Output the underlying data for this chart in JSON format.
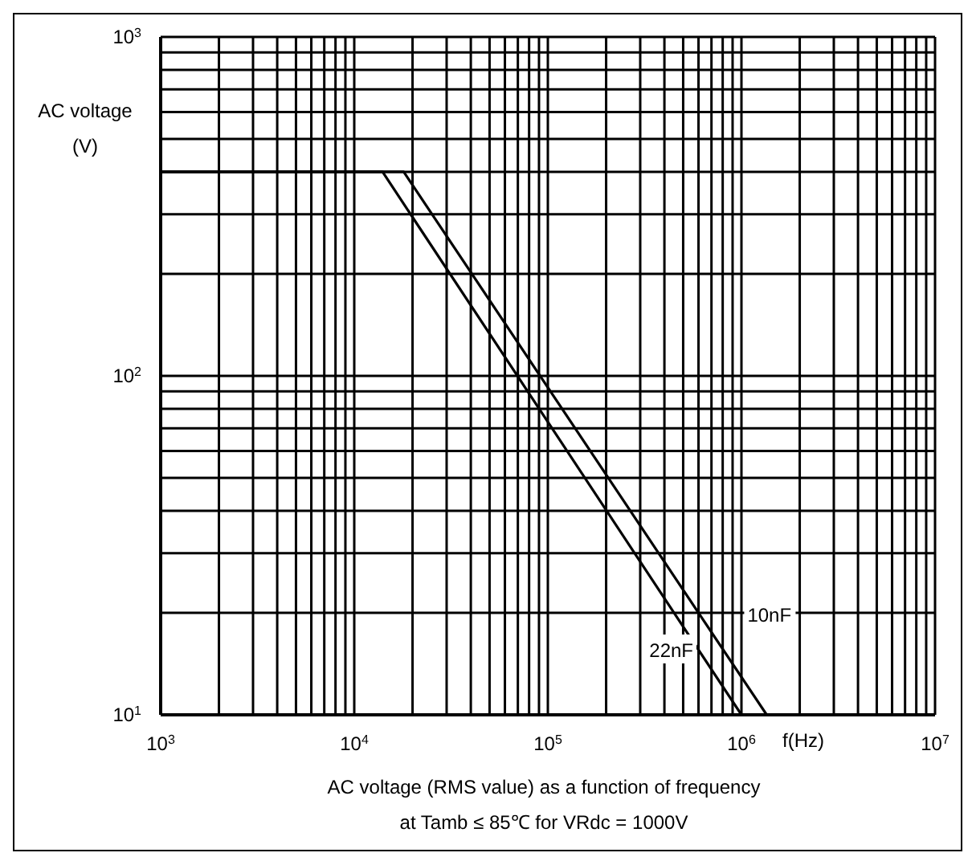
{
  "chart_data": {
    "type": "line",
    "xlabel": "f(Hz)",
    "ylabel": "AC voltage (V)",
    "log": "xy",
    "grid": true,
    "marker": "none",
    "line_style": "solid",
    "xlim": [
      1000,
      10000000
    ],
    "ylim": [
      10,
      1000
    ],
    "xticks": [
      {
        "value": 1000,
        "label": "10$^{3}$"
      },
      {
        "value": 2000,
        "label": null
      },
      {
        "value": 3000,
        "label": null
      },
      {
        "value": 4000,
        "label": null
      },
      {
        "value": 5000,
        "label": null
      },
      {
        "value": 6000,
        "label": null
      },
      {
        "value": 7000,
        "label": null
      },
      {
        "value": 8000,
        "label": null
      },
      {
        "value": 9000,
        "label": null
      },
      {
        "value": 10000,
        "label": "10$^{4}$"
      },
      {
        "value": 20000,
        "label": null
      },
      {
        "value": 30000,
        "label": null
      },
      {
        "value": 40000,
        "label": null
      },
      {
        "value": 50000,
        "label": null
      },
      {
        "value": 60000,
        "label": null
      },
      {
        "value": 70000,
        "label": null
      },
      {
        "value": 80000,
        "label": null
      },
      {
        "value": 90000,
        "label": null
      },
      {
        "value": 100000,
        "label": "10$^{5}$"
      },
      {
        "value": 200000,
        "label": null
      },
      {
        "value": 300000,
        "label": null
      },
      {
        "value": 400000,
        "label": null
      },
      {
        "value": 500000,
        "label": null
      },
      {
        "value": 600000,
        "label": null
      },
      {
        "value": 700000,
        "label": null
      },
      {
        "value": 800000,
        "label": null
      },
      {
        "value": 900000,
        "label": null
      },
      {
        "value": 1000000,
        "label": "10$^{6}$"
      },
      {
        "value": 2000000,
        "label": null
      },
      {
        "value": 3000000,
        "label": null
      },
      {
        "value": 4000000,
        "label": null
      },
      {
        "value": 5000000,
        "label": null
      },
      {
        "value": 6000000,
        "label": null
      },
      {
        "value": 7000000,
        "label": null
      },
      {
        "value": 8000000,
        "label": null
      },
      {
        "value": 9000000,
        "label": null
      },
      {
        "value": 10000000,
        "label": "10$^{7}$"
      }
    ],
    "yticks": [
      {
        "value": 10,
        "label": "10$^{1}$"
      },
      {
        "value": 20,
        "label": null
      },
      {
        "value": 30,
        "label": null
      },
      {
        "value": 40,
        "label": null
      },
      {
        "value": 50,
        "label": null
      },
      {
        "value": 60,
        "label": null
      },
      {
        "value": 70,
        "label": null
      },
      {
        "value": 80,
        "label": null
      },
      {
        "value": 90,
        "label": null
      },
      {
        "value": 100,
        "label": "10$^{2}$"
      },
      {
        "value": 200,
        "label": null
      },
      {
        "value": 300,
        "label": null
      },
      {
        "value": 400,
        "label": null
      },
      {
        "value": 500,
        "label": null
      },
      {
        "value": 600,
        "label": null
      },
      {
        "value": 700,
        "label": null
      },
      {
        "value": 800,
        "label": null
      },
      {
        "value": 900,
        "label": null
      },
      {
        "value": 1000,
        "label": "10$^{3}$"
      }
    ],
    "series": [
      {
        "name": "10nF",
        "color": "#000000",
        "x": [
          1000,
          18000,
          1350000
        ],
        "values": [
          400,
          400,
          10
        ]
      },
      {
        "name": "22nF",
        "color": "#000000",
        "x": [
          1000,
          14000,
          1000000
        ],
        "values": [
          400,
          400,
          10
        ]
      }
    ],
    "annotations": [
      "AC voltage (RMS value) as a function of frequency",
      "at Tamb ≤ 85℃  for VRdc = 1000V"
    ]
  }
}
